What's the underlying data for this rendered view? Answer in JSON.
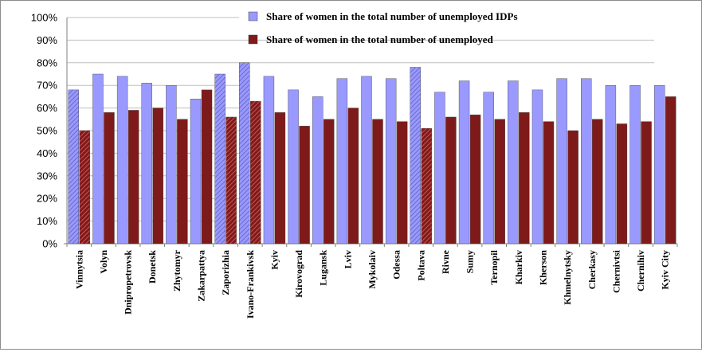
{
  "chart_data": {
    "type": "bar",
    "title": "",
    "xlabel": "",
    "ylabel": "",
    "ylim": [
      0,
      100
    ],
    "y_ticks": [
      "0%",
      "10%",
      "20%",
      "30%",
      "40%",
      "50%",
      "60%",
      "70%",
      "80%",
      "90%",
      "100%"
    ],
    "grid": true,
    "legend_position": "top-right",
    "categories": [
      "Vinnytsia",
      "Volyn",
      "Dnipropetrovsk",
      "Donetsk",
      "Zhytomyr",
      "Zakarpattya",
      "Zaporizhia",
      "Ivano-Frankivsk",
      "Kyiv",
      "Kirovograd",
      "Lugansk",
      "Lviv",
      "Mykolaiv",
      "Odessa",
      "Poltava",
      "Rivne",
      "Sumy",
      "Ternopil",
      "Kharkiv",
      "Kherson",
      "Khmelnytsky",
      "Cherkasy",
      "Chernivtsi",
      "Chernihiv",
      "Kyiv City"
    ],
    "series": [
      {
        "name": "Share of women in the total number of unemployed IDPs",
        "color": "#9999ff",
        "hatched_color": "#6b6bc9",
        "values": [
          68,
          75,
          74,
          71,
          70,
          64,
          75,
          80,
          74,
          68,
          65,
          73,
          74,
          73,
          78,
          67,
          72,
          67,
          72,
          68,
          73,
          73,
          70,
          70,
          70
        ]
      },
      {
        "name": "Share of women in the total number of unemployed",
        "color": "#7f1a1a",
        "hatched_color": "#c85555",
        "values": [
          50,
          58,
          59,
          60,
          55,
          68,
          56,
          63,
          58,
          52,
          55,
          60,
          55,
          54,
          51,
          56,
          57,
          55,
          58,
          54,
          50,
          55,
          53,
          54,
          65
        ]
      }
    ],
    "hatched_categories": [
      "Vinnytsia",
      "Zaporizhia",
      "Ivano-Frankivsk",
      "Poltava"
    ]
  }
}
